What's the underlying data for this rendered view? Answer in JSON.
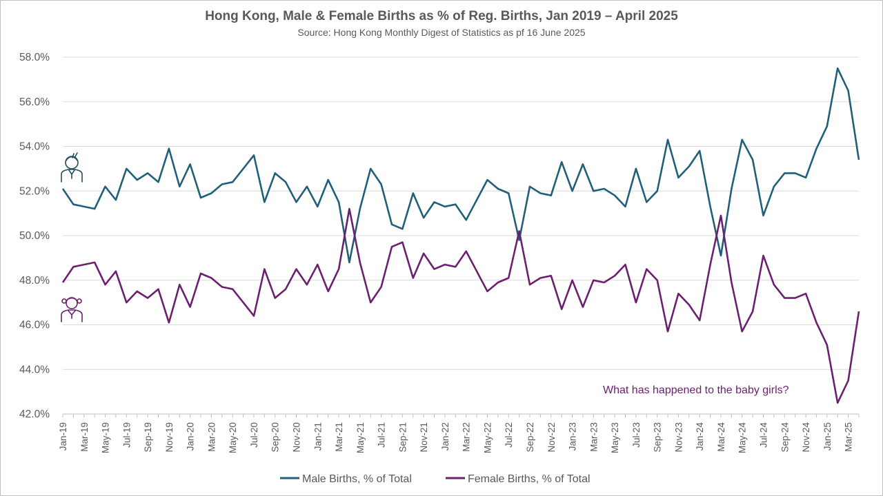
{
  "chart_data": {
    "type": "line",
    "title": "Hong Kong, Male & Female Births as % of Reg. Births, Jan 2019 – April 2025",
    "subtitle": "Source: Hong Kong Monthly Digest of Statistics as pf 16 June 2025",
    "ylim": [
      42,
      58
    ],
    "y_ticks": [
      "42.0%",
      "44.0%",
      "46.0%",
      "48.0%",
      "50.0%",
      "52.0%",
      "54.0%",
      "56.0%",
      "58.0%"
    ],
    "x_tick_labels": [
      "Jan-19",
      "Mar-19",
      "May-19",
      "Jul-19",
      "Sep-19",
      "Nov-19",
      "Jan-20",
      "Mar-20",
      "May-20",
      "Jul-20",
      "Sep-20",
      "Nov-20",
      "Jan-21",
      "Mar-21",
      "May-21",
      "Jul-21",
      "Sep-21",
      "Nov-21",
      "Jan-22",
      "Mar-22",
      "May-22",
      "Jul-22",
      "Sep-22",
      "Nov-22",
      "Jan-23",
      "Mar-23",
      "May-23",
      "Jul-23",
      "Sep-23",
      "Nov-23",
      "Jan-24",
      "Mar-24",
      "May-24",
      "Jul-24",
      "Sep-24",
      "Nov-24",
      "Jan-25",
      "Mar-25"
    ],
    "grid": true,
    "legend_position": "bottom",
    "annotation": "What has happened to the baby girls?",
    "series": [
      {
        "name": "Male Births, % of Total",
        "color": "#1f5f78",
        "values": [
          52.1,
          51.4,
          51.3,
          51.2,
          52.2,
          51.6,
          53.0,
          52.5,
          52.8,
          52.4,
          53.9,
          52.2,
          53.2,
          51.7,
          51.9,
          52.3,
          52.4,
          53.0,
          53.6,
          51.5,
          52.8,
          52.4,
          51.5,
          52.2,
          51.3,
          52.5,
          51.5,
          48.8,
          51.2,
          53.0,
          52.3,
          50.5,
          50.3,
          51.9,
          50.8,
          51.5,
          51.3,
          51.4,
          50.7,
          51.6,
          52.5,
          52.1,
          51.9,
          49.8,
          52.2,
          51.9,
          51.8,
          53.3,
          52.0,
          53.2,
          52.0,
          52.1,
          51.8,
          51.3,
          53.0,
          51.5,
          52.0,
          54.3,
          52.6,
          53.1,
          53.8,
          51.3,
          49.1,
          52.1,
          54.3,
          53.4,
          50.9,
          52.2,
          52.8,
          52.8,
          52.6,
          53.9,
          54.9,
          57.5,
          56.5,
          53.4
        ]
      },
      {
        "name": "Female Births, % of Total",
        "color": "#6b1f6e",
        "values": [
          47.9,
          48.6,
          48.7,
          48.8,
          47.8,
          48.4,
          47.0,
          47.5,
          47.2,
          47.6,
          46.1,
          47.8,
          46.8,
          48.3,
          48.1,
          47.7,
          47.6,
          47.0,
          46.4,
          48.5,
          47.2,
          47.6,
          48.5,
          47.8,
          48.7,
          47.5,
          48.5,
          51.2,
          48.8,
          47.0,
          47.7,
          49.5,
          49.7,
          48.1,
          49.2,
          48.5,
          48.7,
          48.6,
          49.3,
          48.4,
          47.5,
          47.9,
          48.1,
          50.2,
          47.8,
          48.1,
          48.2,
          46.7,
          48.0,
          46.8,
          48.0,
          47.9,
          48.2,
          48.7,
          47.0,
          48.5,
          48.0,
          45.7,
          47.4,
          46.9,
          46.2,
          48.7,
          50.9,
          47.9,
          45.7,
          46.6,
          49.1,
          47.8,
          47.2,
          47.2,
          47.4,
          46.1,
          45.1,
          42.5,
          43.5,
          46.6
        ]
      }
    ]
  },
  "icons": {
    "male": "boy-icon",
    "female": "girl-icon"
  }
}
